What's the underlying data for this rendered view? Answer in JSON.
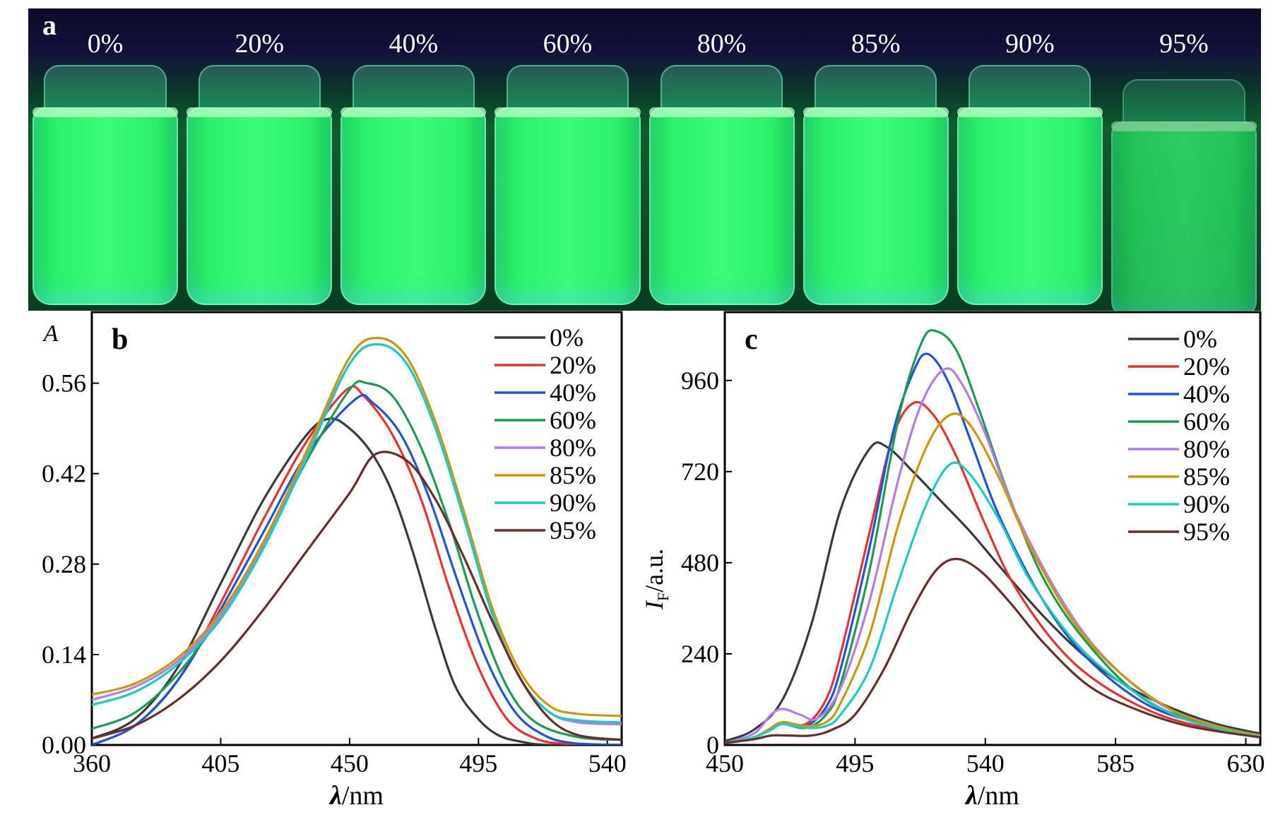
{
  "photo": {
    "panel_label": "a",
    "vials": [
      "0%",
      "20%",
      "40%",
      "60%",
      "80%",
      "85%",
      "90%",
      "95%"
    ]
  },
  "colors": {
    "series": [
      "#3a3a3a",
      "#e8322f",
      "#1d55d6",
      "#1f9a52",
      "#b57ce6",
      "#c9980c",
      "#1fc9c4",
      "#6a2e2a"
    ]
  },
  "chart_data": [
    {
      "type": "line",
      "panel_label": "b",
      "title": "",
      "ylabel": "A",
      "xlabel_symbol": "λ",
      "xlabel_unit": "/nm",
      "xlim": [
        360,
        545
      ],
      "ylim": [
        0,
        0.67
      ],
      "xticks": [
        360,
        405,
        450,
        495,
        540
      ],
      "yticks": [
        "0.00",
        "0.14",
        "0.28",
        "0.42",
        "0.56"
      ],
      "legend_position": "top-right",
      "series": [
        {
          "name": "0%",
          "x": [
            360,
            375,
            390,
            405,
            420,
            435,
            443,
            450,
            458,
            465,
            472,
            480,
            487,
            495,
            502,
            510,
            520,
            545
          ],
          "y": [
            0.01,
            0.04,
            0.12,
            0.25,
            0.38,
            0.48,
            0.505,
            0.49,
            0.45,
            0.39,
            0.3,
            0.18,
            0.09,
            0.04,
            0.015,
            0.005,
            0.0,
            0.0
          ]
        },
        {
          "name": "20%",
          "x": [
            360,
            375,
            390,
            405,
            420,
            435,
            449,
            455,
            465,
            475,
            485,
            495,
            505,
            515,
            525,
            545
          ],
          "y": [
            0.0,
            0.03,
            0.1,
            0.22,
            0.35,
            0.47,
            0.55,
            0.54,
            0.48,
            0.38,
            0.24,
            0.12,
            0.04,
            0.01,
            0.002,
            0.0
          ]
        },
        {
          "name": "40%",
          "x": [
            360,
            375,
            390,
            405,
            420,
            435,
            452,
            458,
            468,
            478,
            488,
            498,
            508,
            518,
            528,
            545
          ],
          "y": [
            0.0,
            0.03,
            0.1,
            0.21,
            0.33,
            0.45,
            0.535,
            0.53,
            0.48,
            0.38,
            0.25,
            0.13,
            0.05,
            0.015,
            0.003,
            0.0
          ]
        },
        {
          "name": "60%",
          "x": [
            360,
            375,
            390,
            405,
            420,
            435,
            450,
            456,
            465,
            475,
            485,
            495,
            505,
            515,
            530,
            545
          ],
          "y": [
            0.025,
            0.05,
            0.11,
            0.2,
            0.31,
            0.44,
            0.55,
            0.56,
            0.54,
            0.46,
            0.34,
            0.2,
            0.09,
            0.035,
            0.012,
            0.008
          ]
        },
        {
          "name": "80%",
          "x": [
            360,
            375,
            390,
            405,
            420,
            435,
            450,
            460,
            470,
            480,
            490,
            500,
            510,
            520,
            530,
            545
          ],
          "y": [
            0.07,
            0.09,
            0.13,
            0.2,
            0.31,
            0.45,
            0.59,
            0.62,
            0.59,
            0.49,
            0.35,
            0.2,
            0.1,
            0.05,
            0.035,
            0.032
          ]
        },
        {
          "name": "85%",
          "x": [
            360,
            375,
            390,
            405,
            420,
            435,
            450,
            460,
            470,
            480,
            490,
            500,
            510,
            520,
            530,
            545
          ],
          "y": [
            0.078,
            0.095,
            0.135,
            0.205,
            0.315,
            0.455,
            0.6,
            0.63,
            0.6,
            0.5,
            0.36,
            0.21,
            0.11,
            0.06,
            0.048,
            0.045
          ]
        },
        {
          "name": "90%",
          "x": [
            360,
            375,
            390,
            405,
            420,
            435,
            450,
            460,
            470,
            480,
            490,
            500,
            510,
            520,
            530,
            545
          ],
          "y": [
            0.062,
            0.082,
            0.125,
            0.195,
            0.305,
            0.445,
            0.59,
            0.62,
            0.59,
            0.49,
            0.35,
            0.2,
            0.1,
            0.05,
            0.038,
            0.035
          ]
        },
        {
          "name": "95%",
          "x": [
            360,
            375,
            390,
            405,
            420,
            435,
            450,
            459,
            470,
            480,
            490,
            500,
            510,
            520,
            530,
            545
          ],
          "y": [
            0.01,
            0.03,
            0.07,
            0.13,
            0.21,
            0.3,
            0.39,
            0.45,
            0.44,
            0.38,
            0.29,
            0.19,
            0.1,
            0.04,
            0.015,
            0.008
          ]
        }
      ]
    },
    {
      "type": "line",
      "panel_label": "c",
      "title": "",
      "ylabel_symbol": "I",
      "ylabel_subscript": "F",
      "ylabel_unit": "/a.u.",
      "xlabel_symbol": "λ",
      "xlabel_unit": "/nm",
      "xlim": [
        450,
        635
      ],
      "ylim": [
        0,
        1140
      ],
      "xticks": [
        450,
        495,
        540,
        585,
        630
      ],
      "yticks": [
        "0",
        "240",
        "480",
        "720",
        "960"
      ],
      "legend_position": "top-right",
      "series": [
        {
          "name": "0%",
          "x": [
            450,
            460,
            470,
            480,
            490,
            500,
            506,
            515,
            525,
            535,
            545,
            560,
            575,
            590,
            605,
            620,
            635
          ],
          "y": [
            10,
            40,
            120,
            320,
            620,
            780,
            785,
            720,
            640,
            560,
            470,
            340,
            230,
            150,
            95,
            55,
            30
          ]
        },
        {
          "name": "20%",
          "x": [
            450,
            460,
            465,
            470,
            478,
            485,
            490,
            500,
            508,
            515,
            522,
            530,
            540,
            550,
            565,
            580,
            600,
            620,
            635
          ],
          "y": [
            5,
            20,
            40,
            60,
            55,
            120,
            240,
            560,
            810,
            900,
            870,
            760,
            580,
            420,
            260,
            160,
            80,
            40,
            25
          ]
        },
        {
          "name": "40%",
          "x": [
            450,
            460,
            465,
            470,
            478,
            485,
            490,
            500,
            508,
            515,
            520,
            527,
            535,
            545,
            560,
            575,
            595,
            615,
            635
          ],
          "y": [
            5,
            20,
            40,
            60,
            50,
            100,
            200,
            520,
            820,
            980,
            1030,
            960,
            800,
            600,
            380,
            230,
            110,
            55,
            25
          ]
        },
        {
          "name": "60%",
          "x": [
            450,
            460,
            465,
            470,
            478,
            485,
            490,
            500,
            510,
            518,
            523,
            530,
            538,
            548,
            560,
            575,
            595,
            615,
            635
          ],
          "y": [
            5,
            20,
            40,
            55,
            45,
            80,
            160,
            460,
            860,
            1060,
            1090,
            1040,
            880,
            660,
            440,
            270,
            120,
            60,
            25
          ]
        },
        {
          "name": "80%",
          "x": [
            450,
            460,
            466,
            470,
            476,
            482,
            490,
            500,
            510,
            518,
            526,
            532,
            540,
            550,
            565,
            580,
            600,
            620,
            635
          ],
          "y": [
            5,
            30,
            80,
            95,
            80,
            70,
            150,
            380,
            700,
            900,
            990,
            950,
            820,
            620,
            400,
            240,
            110,
            50,
            25
          ]
        },
        {
          "name": "85%",
          "x": [
            450,
            460,
            466,
            470,
            478,
            485,
            490,
            500,
            510,
            520,
            528,
            535,
            545,
            555,
            570,
            585,
            605,
            625,
            635
          ],
          "y": [
            5,
            20,
            45,
            60,
            50,
            60,
            110,
            290,
            580,
            790,
            870,
            840,
            700,
            530,
            330,
            200,
            90,
            40,
            25
          ]
        },
        {
          "name": "90%",
          "x": [
            450,
            460,
            466,
            470,
            478,
            485,
            490,
            500,
            510,
            520,
            528,
            535,
            545,
            555,
            570,
            585,
            605,
            625,
            635
          ],
          "y": [
            5,
            20,
            40,
            55,
            45,
            50,
            80,
            200,
            430,
            640,
            740,
            710,
            590,
            440,
            280,
            175,
            80,
            35,
            22
          ]
        },
        {
          "name": "95%",
          "x": [
            450,
            460,
            466,
            472,
            480,
            487,
            495,
            505,
            515,
            523,
            530,
            538,
            548,
            560,
            575,
            590,
            610,
            635
          ],
          "y": [
            5,
            15,
            25,
            25,
            25,
            40,
            80,
            200,
            360,
            460,
            490,
            460,
            380,
            270,
            160,
            100,
            50,
            20
          ]
        }
      ]
    }
  ]
}
